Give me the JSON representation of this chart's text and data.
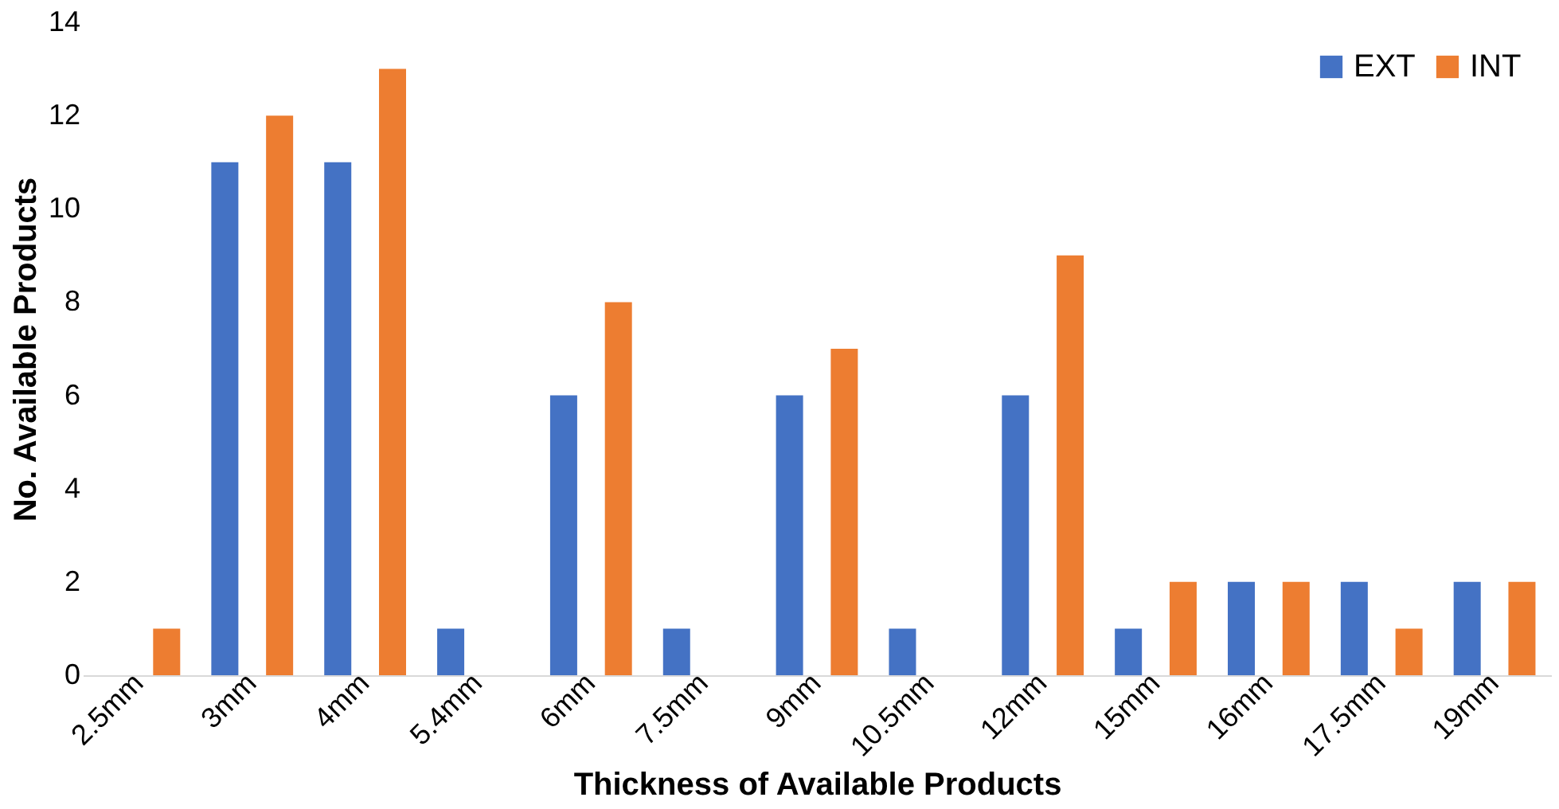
{
  "chart_data": {
    "type": "bar",
    "xlabel": "Thickness of Available Products",
    "ylabel": "No. Available Products",
    "categories": [
      "2.5mm",
      "3mm",
      "4mm",
      "5.4mm",
      "6mm",
      "7.5mm",
      "9mm",
      "10.5mm",
      "12mm",
      "15mm",
      "16mm",
      "17.5mm",
      "19mm"
    ],
    "series": [
      {
        "name": "EXT",
        "color": "#4472c4",
        "values": [
          0,
          11,
          11,
          1,
          6,
          1,
          6,
          1,
          6,
          1,
          2,
          2,
          2
        ]
      },
      {
        "name": "INT",
        "color": "#ed7d31",
        "values": [
          1,
          12,
          13,
          0,
          8,
          0,
          7,
          0,
          9,
          2,
          2,
          1,
          2
        ]
      }
    ],
    "ylim": [
      0,
      14
    ],
    "yticks": [
      0,
      2,
      4,
      6,
      8,
      10,
      12,
      14
    ],
    "grid": false,
    "legend": "top right"
  }
}
